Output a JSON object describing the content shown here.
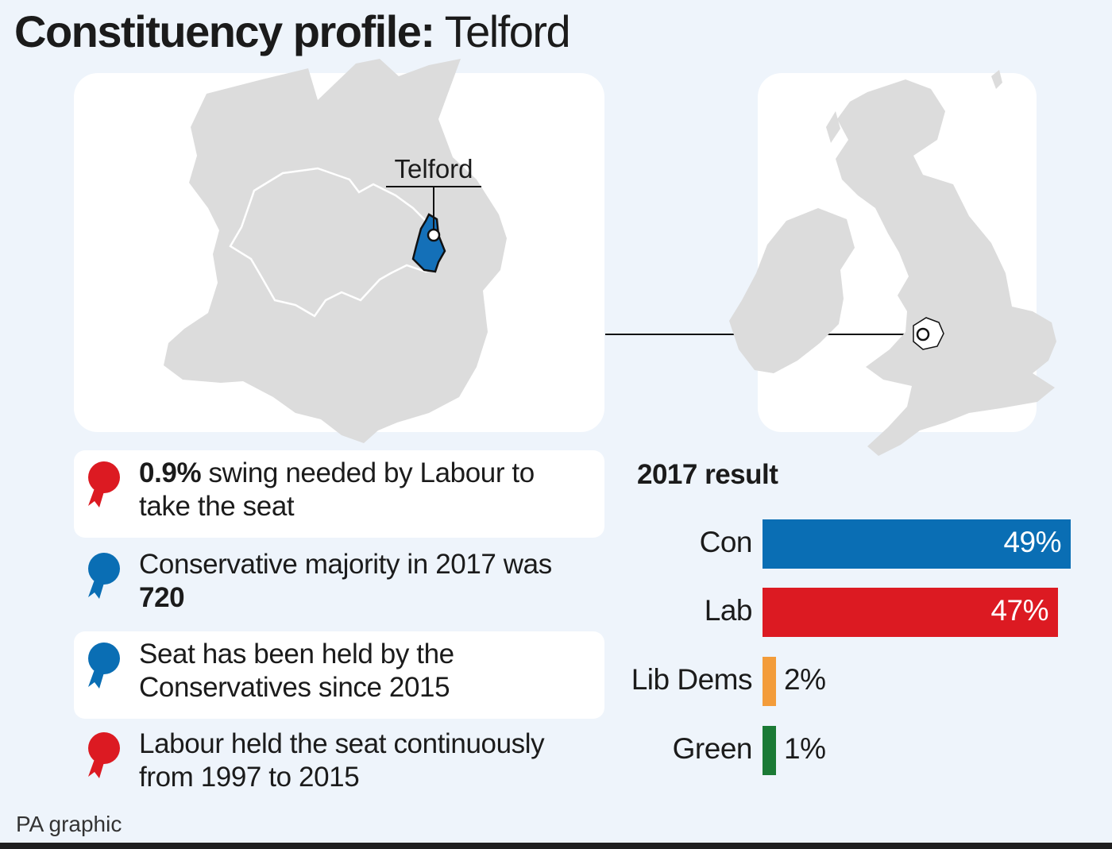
{
  "title": {
    "bold": "Constituency profile:",
    "regular": " Telford"
  },
  "map": {
    "marker_label": "Telford",
    "land_color": "#dcdcdc",
    "highlight_color": "#1470b8",
    "local_icon": "shropshire-map-icon",
    "uk_icon": "uk-ireland-map-icon"
  },
  "facts": [
    {
      "icon": "rosette-icon",
      "color": "#dc1a22",
      "boxed": true,
      "bold": "0.9%",
      "text": " swing needed by Labour to take the seat",
      "bold_first": true
    },
    {
      "icon": "rosette-icon",
      "color": "#0a6eb4",
      "boxed": false,
      "text": "Conservative majority in 2017 was ",
      "bold": "720",
      "bold_first": false
    },
    {
      "icon": "rosette-icon",
      "color": "#0a6eb4",
      "boxed": true,
      "text": "Seat has been held by the Conservatives since 2015",
      "bold": "",
      "bold_first": false
    },
    {
      "icon": "rosette-icon",
      "color": "#dc1a22",
      "boxed": false,
      "text": "Labour held the seat continuously from 1997 to 2015",
      "bold": "",
      "bold_first": false
    }
  ],
  "chart_data": {
    "type": "bar",
    "orientation": "horizontal",
    "title": "2017 result",
    "categories": [
      "Con",
      "Lab",
      "Lib Dems",
      "Green"
    ],
    "values": [
      49,
      47,
      2,
      1
    ],
    "value_labels": [
      "49%",
      "47%",
      "2%",
      "1%"
    ],
    "colors": [
      "#0a6eb4",
      "#dc1a22",
      "#f39c3a",
      "#1b7a35"
    ],
    "unit": "%",
    "xlim": [
      0,
      49
    ],
    "grid": false,
    "legend": "none"
  },
  "footer": "PA graphic"
}
